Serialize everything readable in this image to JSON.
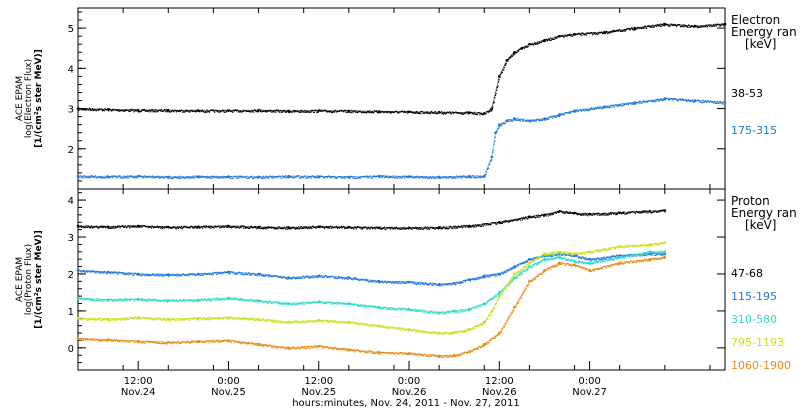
{
  "chart_data": [
    {
      "panel": "electron",
      "type": "scatter",
      "instrument": "ACE EPAM",
      "ylabel": "log(Electron Flux)",
      "yunit": "[1/(cm²s ster MeV)]",
      "legend_title": [
        "Electron",
        "Energy ran",
        "[keV]"
      ],
      "xlim_hours": [
        0,
        86
      ],
      "ylim": [
        1.0,
        5.5
      ],
      "yticks": [
        2,
        3,
        4,
        5
      ],
      "grid": false,
      "series": [
        {
          "name": "38-53",
          "color": "#000000",
          "x": [
            0,
            4,
            8,
            12,
            16,
            20,
            24,
            28,
            32,
            36,
            40,
            44,
            48,
            52,
            54,
            55,
            56,
            57,
            58,
            59,
            60,
            62,
            64,
            66,
            70,
            74,
            78,
            82,
            86
          ],
          "y": [
            3.0,
            2.98,
            2.96,
            2.96,
            2.95,
            2.95,
            2.96,
            2.94,
            2.95,
            2.94,
            2.93,
            2.92,
            2.91,
            2.9,
            2.88,
            3.0,
            3.8,
            4.2,
            4.4,
            4.5,
            4.6,
            4.7,
            4.8,
            4.85,
            4.9,
            5.0,
            5.1,
            5.05,
            5.1
          ]
        },
        {
          "name": "175-315",
          "color": "#1E78D6",
          "x": [
            0,
            4,
            8,
            12,
            16,
            20,
            24,
            28,
            32,
            36,
            40,
            44,
            48,
            52,
            54,
            55,
            55.5,
            56,
            57,
            58,
            60,
            62,
            64,
            66,
            70,
            74,
            78,
            82,
            86
          ],
          "y": [
            1.32,
            1.31,
            1.32,
            1.3,
            1.31,
            1.31,
            1.3,
            1.32,
            1.31,
            1.3,
            1.32,
            1.31,
            1.3,
            1.32,
            1.32,
            1.8,
            2.4,
            2.6,
            2.7,
            2.75,
            2.7,
            2.75,
            2.85,
            2.95,
            3.05,
            3.15,
            3.25,
            3.2,
            3.15
          ]
        }
      ]
    },
    {
      "panel": "proton",
      "type": "scatter",
      "instrument": "ACE EPAM",
      "ylabel": "log(Proton Flux)",
      "yunit": "[1/(cm²s ster MeV)]",
      "legend_title": [
        "Proton",
        "Energy ran",
        "[keV]"
      ],
      "xlim_hours": [
        0,
        86
      ],
      "xticks": [
        {
          "hour": 8,
          "time": "12:00",
          "date": "Nov.24"
        },
        {
          "hour": 20,
          "time": "0:00",
          "date": "Nov.25"
        },
        {
          "hour": 32,
          "time": "12:00",
          "date": "Nov.25"
        },
        {
          "hour": 44,
          "time": "0:00",
          "date": "Nov.26"
        },
        {
          "hour": 56,
          "time": "12:00",
          "date": "Nov.26"
        },
        {
          "hour": 68,
          "time": "0:00",
          "date": "Nov.27"
        }
      ],
      "ylim": [
        -0.6,
        4.3
      ],
      "yticks": [
        0,
        1,
        2,
        3,
        4
      ],
      "grid": false,
      "series": [
        {
          "name": "47-68",
          "color": "#000000",
          "x": [
            0,
            4,
            8,
            12,
            16,
            20,
            24,
            28,
            32,
            36,
            40,
            44,
            48,
            52,
            56,
            60,
            62,
            64,
            66,
            68,
            72,
            76,
            78
          ],
          "y": [
            3.3,
            3.28,
            3.3,
            3.27,
            3.28,
            3.3,
            3.27,
            3.26,
            3.28,
            3.27,
            3.25,
            3.25,
            3.26,
            3.3,
            3.4,
            3.55,
            3.6,
            3.7,
            3.65,
            3.62,
            3.66,
            3.7,
            3.72
          ]
        },
        {
          "name": "115-195",
          "color": "#1E78D6",
          "x": [
            0,
            4,
            8,
            12,
            16,
            20,
            24,
            28,
            32,
            36,
            40,
            44,
            48,
            50,
            52,
            54,
            56,
            58,
            60,
            62,
            64,
            66,
            68,
            72,
            76,
            78
          ],
          "y": [
            2.1,
            2.05,
            2.0,
            1.98,
            2.0,
            2.05,
            2.0,
            1.9,
            1.95,
            1.9,
            1.8,
            1.78,
            1.72,
            1.75,
            1.85,
            1.95,
            2.0,
            2.2,
            2.4,
            2.5,
            2.55,
            2.5,
            2.4,
            2.5,
            2.55,
            2.55
          ]
        },
        {
          "name": "310-580",
          "color": "#30D8C8",
          "x": [
            0,
            4,
            8,
            12,
            16,
            20,
            24,
            28,
            32,
            36,
            40,
            44,
            48,
            50,
            52,
            54,
            56,
            58,
            60,
            62,
            64,
            66,
            68,
            72,
            76,
            78
          ],
          "y": [
            1.35,
            1.3,
            1.32,
            1.28,
            1.3,
            1.35,
            1.28,
            1.2,
            1.25,
            1.2,
            1.1,
            1.05,
            0.95,
            1.0,
            1.05,
            1.2,
            1.5,
            1.9,
            2.2,
            2.4,
            2.45,
            2.35,
            2.3,
            2.45,
            2.6,
            2.6
          ]
        },
        {
          "name": "795-1193",
          "color": "#C8E020",
          "x": [
            0,
            4,
            8,
            12,
            16,
            20,
            24,
            28,
            32,
            36,
            40,
            44,
            48,
            50,
            52,
            54,
            55,
            56,
            58,
            60,
            62,
            64,
            66,
            68,
            72,
            76,
            78
          ],
          "y": [
            0.8,
            0.78,
            0.82,
            0.78,
            0.8,
            0.82,
            0.78,
            0.7,
            0.75,
            0.7,
            0.6,
            0.5,
            0.4,
            0.42,
            0.5,
            0.7,
            1.0,
            1.4,
            2.0,
            2.3,
            2.55,
            2.6,
            2.55,
            2.6,
            2.75,
            2.8,
            2.85
          ]
        },
        {
          "name": "1060-1900",
          "color": "#E88A18",
          "x": [
            0,
            4,
            8,
            12,
            16,
            20,
            24,
            28,
            32,
            36,
            40,
            44,
            48,
            50,
            52,
            54,
            56,
            58,
            60,
            62,
            64,
            66,
            68,
            72,
            76,
            78
          ],
          "y": [
            0.25,
            0.22,
            0.18,
            0.15,
            0.18,
            0.2,
            0.1,
            0.0,
            0.05,
            -0.05,
            -0.12,
            -0.15,
            -0.22,
            -0.2,
            -0.1,
            0.1,
            0.4,
            1.1,
            1.8,
            2.1,
            2.3,
            2.25,
            2.1,
            2.3,
            2.4,
            2.45
          ]
        }
      ]
    }
  ],
  "xlabel": "hours:minutes, Nov. 24, 2011 - Nov. 27, 2011"
}
